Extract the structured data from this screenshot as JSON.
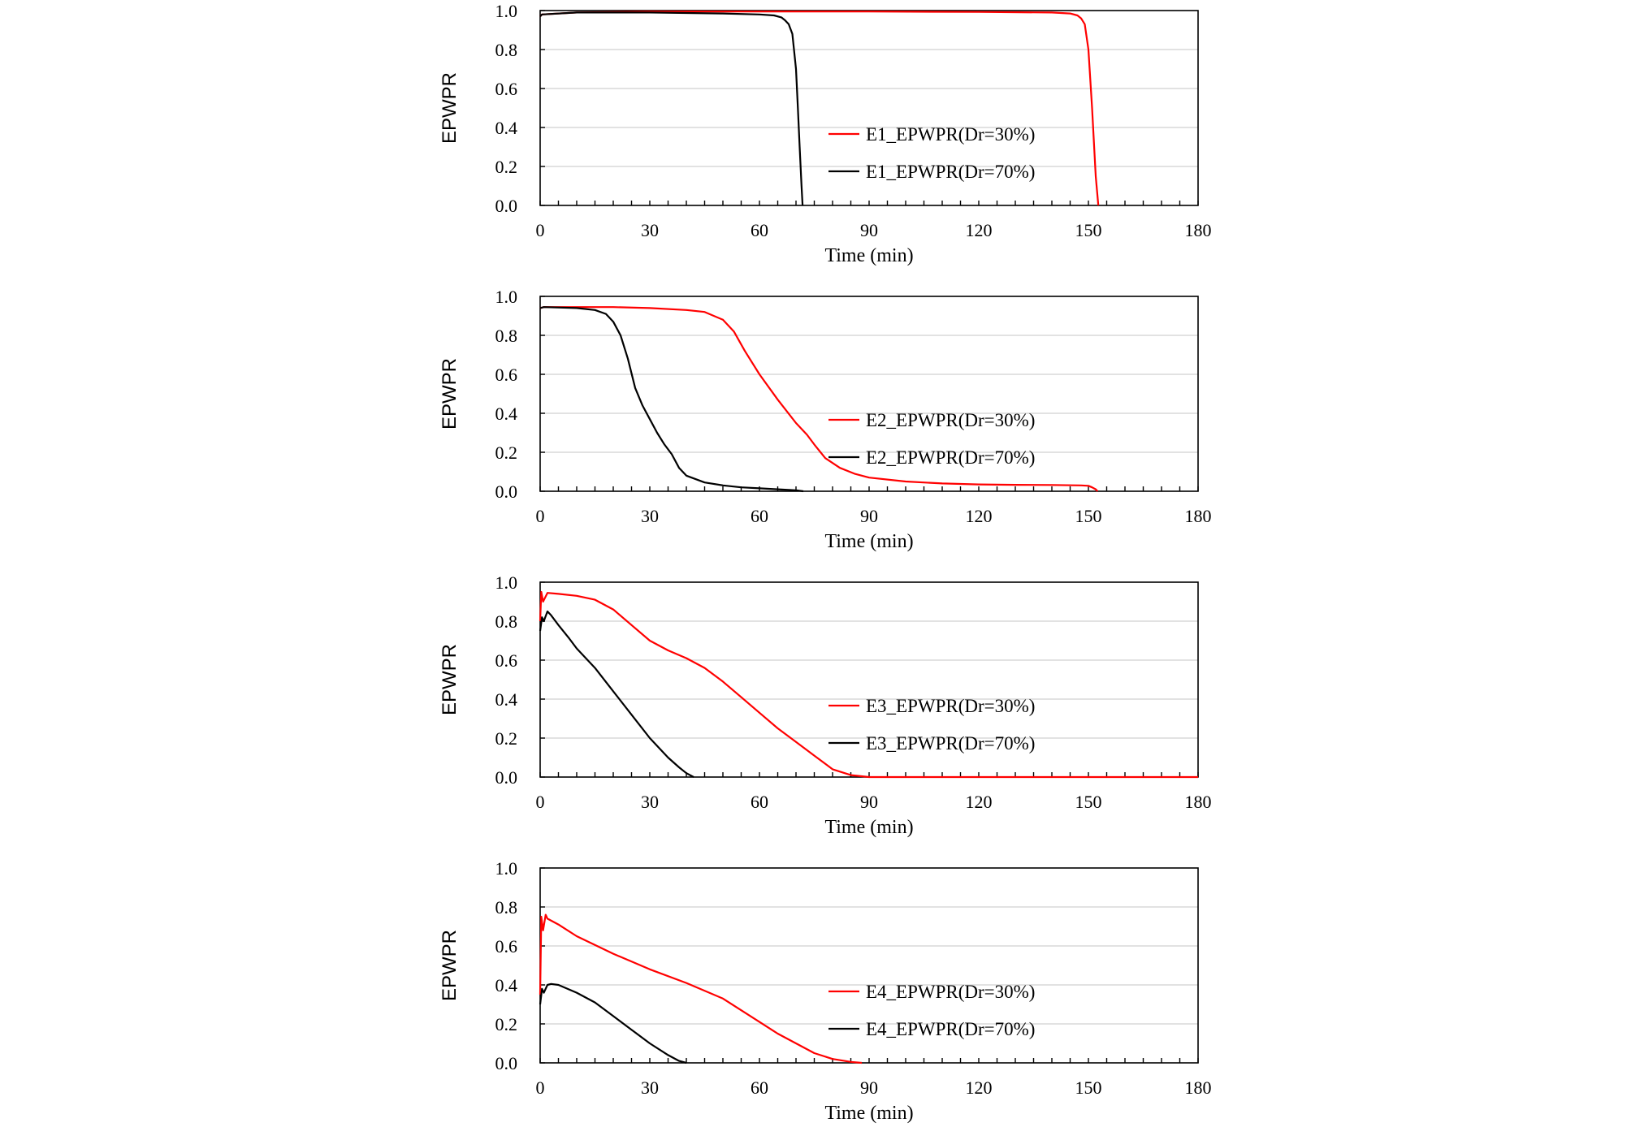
{
  "colors": {
    "series_30": "#ff0000",
    "series_70": "#000000",
    "grid": "#d9d9d9",
    "axis": "#000000"
  },
  "chart_data": [
    {
      "type": "line",
      "xlabel": "Time (min)",
      "ylabel": "EPWPR",
      "xlim": [
        0,
        180
      ],
      "ylim": [
        0,
        1
      ],
      "xticks": [
        "0",
        "30",
        "60",
        "90",
        "120",
        "150",
        "180"
      ],
      "yticks": [
        "0.0",
        "0.2",
        "0.4",
        "0.6",
        "0.8",
        "1.0"
      ],
      "grid": "horizontal",
      "legend_position": "right",
      "series": [
        {
          "name": "E1_EPWPR(Dr=30%)",
          "color": "#ff0000",
          "x": [
            0,
            0.5,
            10,
            30,
            60,
            90,
            120,
            140,
            145,
            147,
            148,
            149,
            150,
            151,
            152,
            152.7
          ],
          "y": [
            0.97,
            0.98,
            0.99,
            0.995,
            0.995,
            0.995,
            0.993,
            0.99,
            0.985,
            0.975,
            0.96,
            0.93,
            0.8,
            0.5,
            0.15,
            0.0
          ]
        },
        {
          "name": "E1_EPWPR(Dr=70%)",
          "color": "#000000",
          "x": [
            0,
            0.5,
            10,
            30,
            50,
            60,
            64,
            66,
            67,
            68,
            69,
            70,
            70.5,
            71,
            71.5,
            71.8
          ],
          "y": [
            0.97,
            0.98,
            0.99,
            0.99,
            0.985,
            0.98,
            0.975,
            0.965,
            0.95,
            0.93,
            0.88,
            0.7,
            0.5,
            0.3,
            0.1,
            0.0
          ]
        }
      ]
    },
    {
      "type": "line",
      "xlabel": "Time (min)",
      "ylabel": "EPWPR",
      "xlim": [
        0,
        180
      ],
      "ylim": [
        0,
        1
      ],
      "xticks": [
        "0",
        "30",
        "60",
        "90",
        "120",
        "150",
        "180"
      ],
      "yticks": [
        "0.0",
        "0.2",
        "0.4",
        "0.6",
        "0.8",
        "1.0"
      ],
      "grid": "horizontal",
      "legend_position": "right",
      "series": [
        {
          "name": "E2_EPWPR(Dr=30%)",
          "color": "#ff0000",
          "x": [
            0,
            1,
            10,
            20,
            30,
            40,
            45,
            50,
            53,
            56,
            60,
            65,
            70,
            73,
            75,
            78,
            82,
            86,
            90,
            100,
            110,
            120,
            130,
            140,
            148,
            150,
            151,
            152,
            152.5
          ],
          "y": [
            0.94,
            0.945,
            0.945,
            0.945,
            0.94,
            0.93,
            0.92,
            0.88,
            0.82,
            0.72,
            0.6,
            0.47,
            0.35,
            0.29,
            0.24,
            0.17,
            0.12,
            0.09,
            0.07,
            0.05,
            0.04,
            0.035,
            0.033,
            0.032,
            0.03,
            0.028,
            0.02,
            0.01,
            0.0
          ]
        },
        {
          "name": "E2_EPWPR(Dr=70%)",
          "color": "#000000",
          "x": [
            0,
            1,
            10,
            15,
            18,
            20,
            22,
            24,
            26,
            28,
            30,
            32,
            34,
            36,
            38,
            40,
            45,
            50,
            55,
            60,
            65,
            70,
            72
          ],
          "y": [
            0.94,
            0.945,
            0.94,
            0.93,
            0.91,
            0.87,
            0.8,
            0.68,
            0.53,
            0.44,
            0.37,
            0.3,
            0.24,
            0.19,
            0.12,
            0.08,
            0.045,
            0.03,
            0.02,
            0.015,
            0.01,
            0.005,
            0.0
          ]
        }
      ]
    },
    {
      "type": "line",
      "xlabel": "Time (min)",
      "ylabel": "EPWPR",
      "xlim": [
        0,
        180
      ],
      "ylim": [
        0,
        1
      ],
      "xticks": [
        "0",
        "30",
        "60",
        "90",
        "120",
        "150",
        "180"
      ],
      "yticks": [
        "0.0",
        "0.2",
        "0.4",
        "0.6",
        "0.8",
        "1.0"
      ],
      "grid": "horizontal",
      "legend_position": "right",
      "series": [
        {
          "name": "E3_EPWPR(Dr=30%)",
          "color": "#ff0000",
          "x": [
            0,
            0.3,
            0.8,
            2,
            5,
            10,
            15,
            20,
            25,
            30,
            35,
            40,
            45,
            50,
            55,
            60,
            65,
            70,
            75,
            80,
            85,
            90,
            120,
            150,
            180
          ],
          "y": [
            0.8,
            0.95,
            0.9,
            0.945,
            0.94,
            0.93,
            0.91,
            0.86,
            0.78,
            0.7,
            0.65,
            0.61,
            0.56,
            0.49,
            0.41,
            0.33,
            0.25,
            0.18,
            0.11,
            0.04,
            0.01,
            0.0,
            0.0,
            0.0,
            0.0
          ]
        },
        {
          "name": "E3_EPWPR(Dr=70%)",
          "color": "#000000",
          "x": [
            0,
            0.5,
            1,
            2,
            3,
            5,
            8,
            10,
            15,
            20,
            25,
            30,
            35,
            38,
            40,
            42
          ],
          "y": [
            0.75,
            0.82,
            0.8,
            0.85,
            0.83,
            0.78,
            0.71,
            0.66,
            0.56,
            0.44,
            0.32,
            0.2,
            0.1,
            0.05,
            0.02,
            0.0
          ]
        }
      ]
    },
    {
      "type": "line",
      "xlabel": "Time (min)",
      "ylabel": "EPWPR",
      "xlim": [
        0,
        180
      ],
      "ylim": [
        0,
        1
      ],
      "xticks": [
        "0",
        "30",
        "60",
        "90",
        "120",
        "150",
        "180"
      ],
      "yticks": [
        "0.0",
        "0.2",
        "0.4",
        "0.6",
        "0.8",
        "1.0"
      ],
      "grid": "horizontal",
      "legend_position": "right",
      "series": [
        {
          "name": "E4_EPWPR(Dr=30%)",
          "color": "#ff0000",
          "x": [
            0,
            0.3,
            0.8,
            1.5,
            2,
            5,
            10,
            20,
            30,
            40,
            50,
            55,
            60,
            65,
            70,
            75,
            80,
            85,
            88
          ],
          "y": [
            0.35,
            0.75,
            0.68,
            0.76,
            0.74,
            0.71,
            0.65,
            0.56,
            0.48,
            0.41,
            0.33,
            0.27,
            0.21,
            0.15,
            0.1,
            0.05,
            0.02,
            0.005,
            0.0
          ]
        },
        {
          "name": "E4_EPWPR(Dr=70%)",
          "color": "#000000",
          "x": [
            0,
            0.5,
            1,
            2,
            3,
            5,
            10,
            15,
            20,
            25,
            30,
            35,
            38,
            40
          ],
          "y": [
            0.3,
            0.38,
            0.36,
            0.4,
            0.405,
            0.4,
            0.36,
            0.31,
            0.24,
            0.17,
            0.1,
            0.04,
            0.01,
            0.0
          ]
        }
      ]
    }
  ]
}
